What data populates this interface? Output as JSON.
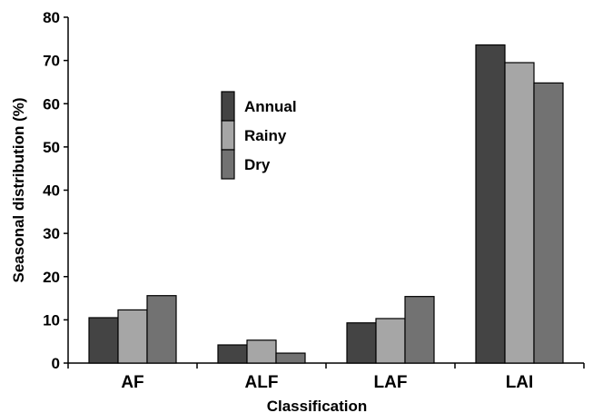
{
  "chart_data": {
    "type": "bar",
    "categories": [
      "AF",
      "ALF",
      "LAF",
      "LAI"
    ],
    "series": [
      {
        "name": "Annual",
        "values": [
          10.5,
          4.2,
          9.3,
          73.6
        ],
        "color": "#444444"
      },
      {
        "name": "Rainy",
        "values": [
          12.3,
          5.3,
          10.3,
          69.5
        ],
        "color": "#a6a6a6"
      },
      {
        "name": "Dry",
        "values": [
          15.6,
          2.3,
          15.4,
          64.8
        ],
        "color": "#727272"
      }
    ],
    "xlabel": "Classification",
    "ylabel": "Seasonal distribution (%)",
    "ylim": [
      0,
      80
    ],
    "yticks": [
      "0",
      "10",
      "20",
      "30",
      "40",
      "50",
      "60",
      "70",
      "80"
    ],
    "grid": false,
    "legend_position": "upper-center"
  }
}
